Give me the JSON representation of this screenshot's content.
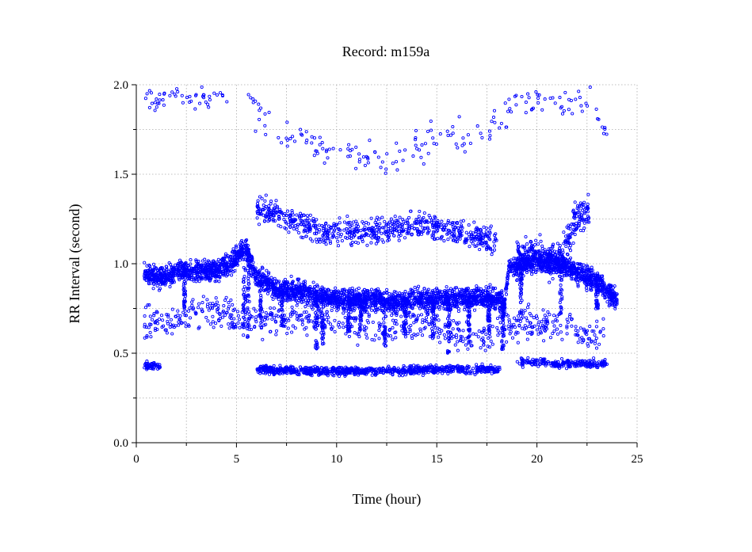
{
  "chart_data": {
    "type": "scatter",
    "title": "Record:  m159a",
    "xlabel": "Time (hour)",
    "ylabel": "RR Interval (second)",
    "xlim": [
      0,
      25
    ],
    "ylim": [
      0.0,
      2.0
    ],
    "xticks": [
      0,
      5,
      10,
      15,
      20,
      25
    ],
    "xtick_labels": [
      "0",
      "5",
      "10",
      "15",
      "20",
      "25"
    ],
    "xminor_ticks": [
      2.5,
      7.5,
      12.5,
      17.5,
      22.5
    ],
    "yticks": [
      0.0,
      0.5,
      1.0,
      1.5,
      2.0
    ],
    "ytick_labels": [
      "0.0",
      "0.5",
      "1.0",
      "1.5",
      "2.0"
    ],
    "yminor_ticks": [
      0.25,
      0.75,
      1.25,
      1.75
    ],
    "grid": true,
    "marker": "open-circle",
    "point_color": "#0000ff",
    "series": [
      {
        "bands": [
          {
            "role": "main",
            "points_per_hour": 150,
            "profile": [
              [
                0.4,
                0.95
              ],
              [
                1.0,
                0.93
              ],
              [
                1.5,
                0.92
              ],
              [
                2.0,
                0.96
              ],
              [
                2.5,
                0.96
              ],
              [
                3.0,
                0.96
              ],
              [
                4.0,
                0.96
              ],
              [
                4.7,
                1.0
              ],
              [
                5.2,
                1.06
              ],
              [
                5.5,
                1.08
              ],
              [
                6.0,
                0.93
              ],
              [
                7.0,
                0.86
              ],
              [
                8.0,
                0.85
              ],
              [
                9.0,
                0.82
              ],
              [
                10.0,
                0.8
              ],
              [
                11.0,
                0.8
              ],
              [
                12.0,
                0.8
              ],
              [
                13.0,
                0.78
              ],
              [
                14.0,
                0.8
              ],
              [
                15.0,
                0.8
              ],
              [
                16.0,
                0.8
              ],
              [
                17.0,
                0.82
              ],
              [
                18.0,
                0.8
              ],
              [
                18.4,
                0.78
              ],
              [
                18.6,
                0.98
              ],
              [
                19.0,
                0.98
              ],
              [
                20.0,
                1.02
              ],
              [
                21.0,
                1.02
              ],
              [
                22.0,
                0.95
              ],
              [
                23.0,
                0.9
              ],
              [
                24.0,
                0.8
              ]
            ],
            "spread": 0.05
          },
          {
            "role": "upper-cluster",
            "points_per_hour": 60,
            "profile": [
              [
                6.0,
                1.3
              ],
              [
                7.0,
                1.28
              ],
              [
                8.0,
                1.24
              ],
              [
                9.0,
                1.18
              ],
              [
                10.0,
                1.18
              ],
              [
                11.0,
                1.18
              ],
              [
                12.0,
                1.18
              ],
              [
                13.0,
                1.2
              ],
              [
                14.0,
                1.22
              ],
              [
                15.0,
                1.2
              ],
              [
                16.0,
                1.18
              ],
              [
                17.0,
                1.15
              ],
              [
                18.0,
                1.12
              ]
            ],
            "spread": 0.06
          },
          {
            "role": "upper-cluster",
            "points_per_hour": 80,
            "profile": [
              [
                19.0,
                1.05
              ],
              [
                20.0,
                1.05
              ],
              [
                21.0,
                1.0
              ],
              [
                22.0,
                1.25
              ],
              [
                22.6,
                1.28
              ]
            ],
            "spread": 0.08
          },
          {
            "role": "lower-cluster",
            "points_per_hour": 60,
            "profile": [
              [
                0.4,
                0.43
              ],
              [
                1.2,
                0.43
              ]
            ],
            "spread": 0.02
          },
          {
            "role": "lower-cluster",
            "points_per_hour": 70,
            "profile": [
              [
                6.0,
                0.41
              ],
              [
                9.0,
                0.4
              ],
              [
                12.0,
                0.4
              ],
              [
                15.0,
                0.41
              ],
              [
                18.2,
                0.41
              ]
            ],
            "spread": 0.02
          },
          {
            "role": "lower-cluster",
            "points_per_hour": 50,
            "profile": [
              [
                19.0,
                0.45
              ],
              [
                20.0,
                0.45
              ],
              [
                21.0,
                0.44
              ],
              [
                22.0,
                0.44
              ],
              [
                23.5,
                0.44
              ]
            ],
            "spread": 0.02
          },
          {
            "role": "sparse",
            "points_per_hour": 12,
            "profile": [
              [
                0.4,
                1.92
              ],
              [
                1.0,
                1.9
              ],
              [
                2.0,
                1.94
              ],
              [
                3.0,
                1.92
              ],
              [
                4.0,
                1.92
              ],
              [
                4.6,
                1.9
              ]
            ],
            "spread": 0.05
          },
          {
            "role": "sparse",
            "points_per_hour": 10,
            "profile": [
              [
                5.6,
                1.92
              ],
              [
                6.5,
                1.78
              ],
              [
                7.5,
                1.72
              ],
              [
                8.5,
                1.68
              ],
              [
                10.0,
                1.62
              ],
              [
                11.5,
                1.58
              ],
              [
                13.0,
                1.6
              ],
              [
                14.5,
                1.68
              ],
              [
                15.5,
                1.72
              ],
              [
                16.5,
                1.7
              ],
              [
                17.5,
                1.75
              ],
              [
                18.5,
                1.85
              ],
              [
                19.5,
                1.95
              ],
              [
                20.5,
                1.92
              ],
              [
                21.5,
                1.9
              ],
              [
                22.5,
                1.9
              ],
              [
                23.5,
                1.75
              ]
            ],
            "spread": 0.08
          },
          {
            "role": "sparse",
            "points_per_hour": 30,
            "profile": [
              [
                0.4,
                0.68
              ],
              [
                1.2,
                0.65
              ],
              [
                2.5,
                0.72
              ],
              [
                3.5,
                0.75
              ],
              [
                5.0,
                0.7
              ],
              [
                6.0,
                0.68
              ],
              [
                8.0,
                0.7
              ],
              [
                10.0,
                0.68
              ],
              [
                12.0,
                0.65
              ],
              [
                14.0,
                0.68
              ],
              [
                16.0,
                0.62
              ],
              [
                17.0,
                0.58
              ],
              [
                18.0,
                0.62
              ],
              [
                20.0,
                0.66
              ],
              [
                21.5,
                0.65
              ],
              [
                22.5,
                0.6
              ],
              [
                23.5,
                0.62
              ]
            ],
            "spread": 0.08
          }
        ],
        "dips": [
          {
            "x": 2.4,
            "min": 0.7
          },
          {
            "x": 5.4,
            "min": 0.6
          },
          {
            "x": 5.6,
            "min": 0.58
          },
          {
            "x": 6.2,
            "min": 0.62
          },
          {
            "x": 7.3,
            "min": 0.65
          },
          {
            "x": 9.0,
            "min": 0.52
          },
          {
            "x": 9.3,
            "min": 0.55
          },
          {
            "x": 10.6,
            "min": 0.62
          },
          {
            "x": 11.2,
            "min": 0.62
          },
          {
            "x": 12.4,
            "min": 0.52
          },
          {
            "x": 13.4,
            "min": 0.6
          },
          {
            "x": 14.8,
            "min": 0.58
          },
          {
            "x": 15.6,
            "min": 0.5
          },
          {
            "x": 16.6,
            "min": 0.55
          },
          {
            "x": 17.6,
            "min": 0.58
          },
          {
            "x": 18.3,
            "min": 0.52
          },
          {
            "x": 19.2,
            "min": 0.72
          },
          {
            "x": 21.2,
            "min": 0.72
          },
          {
            "x": 23.0,
            "min": 0.74
          }
        ]
      }
    ]
  }
}
